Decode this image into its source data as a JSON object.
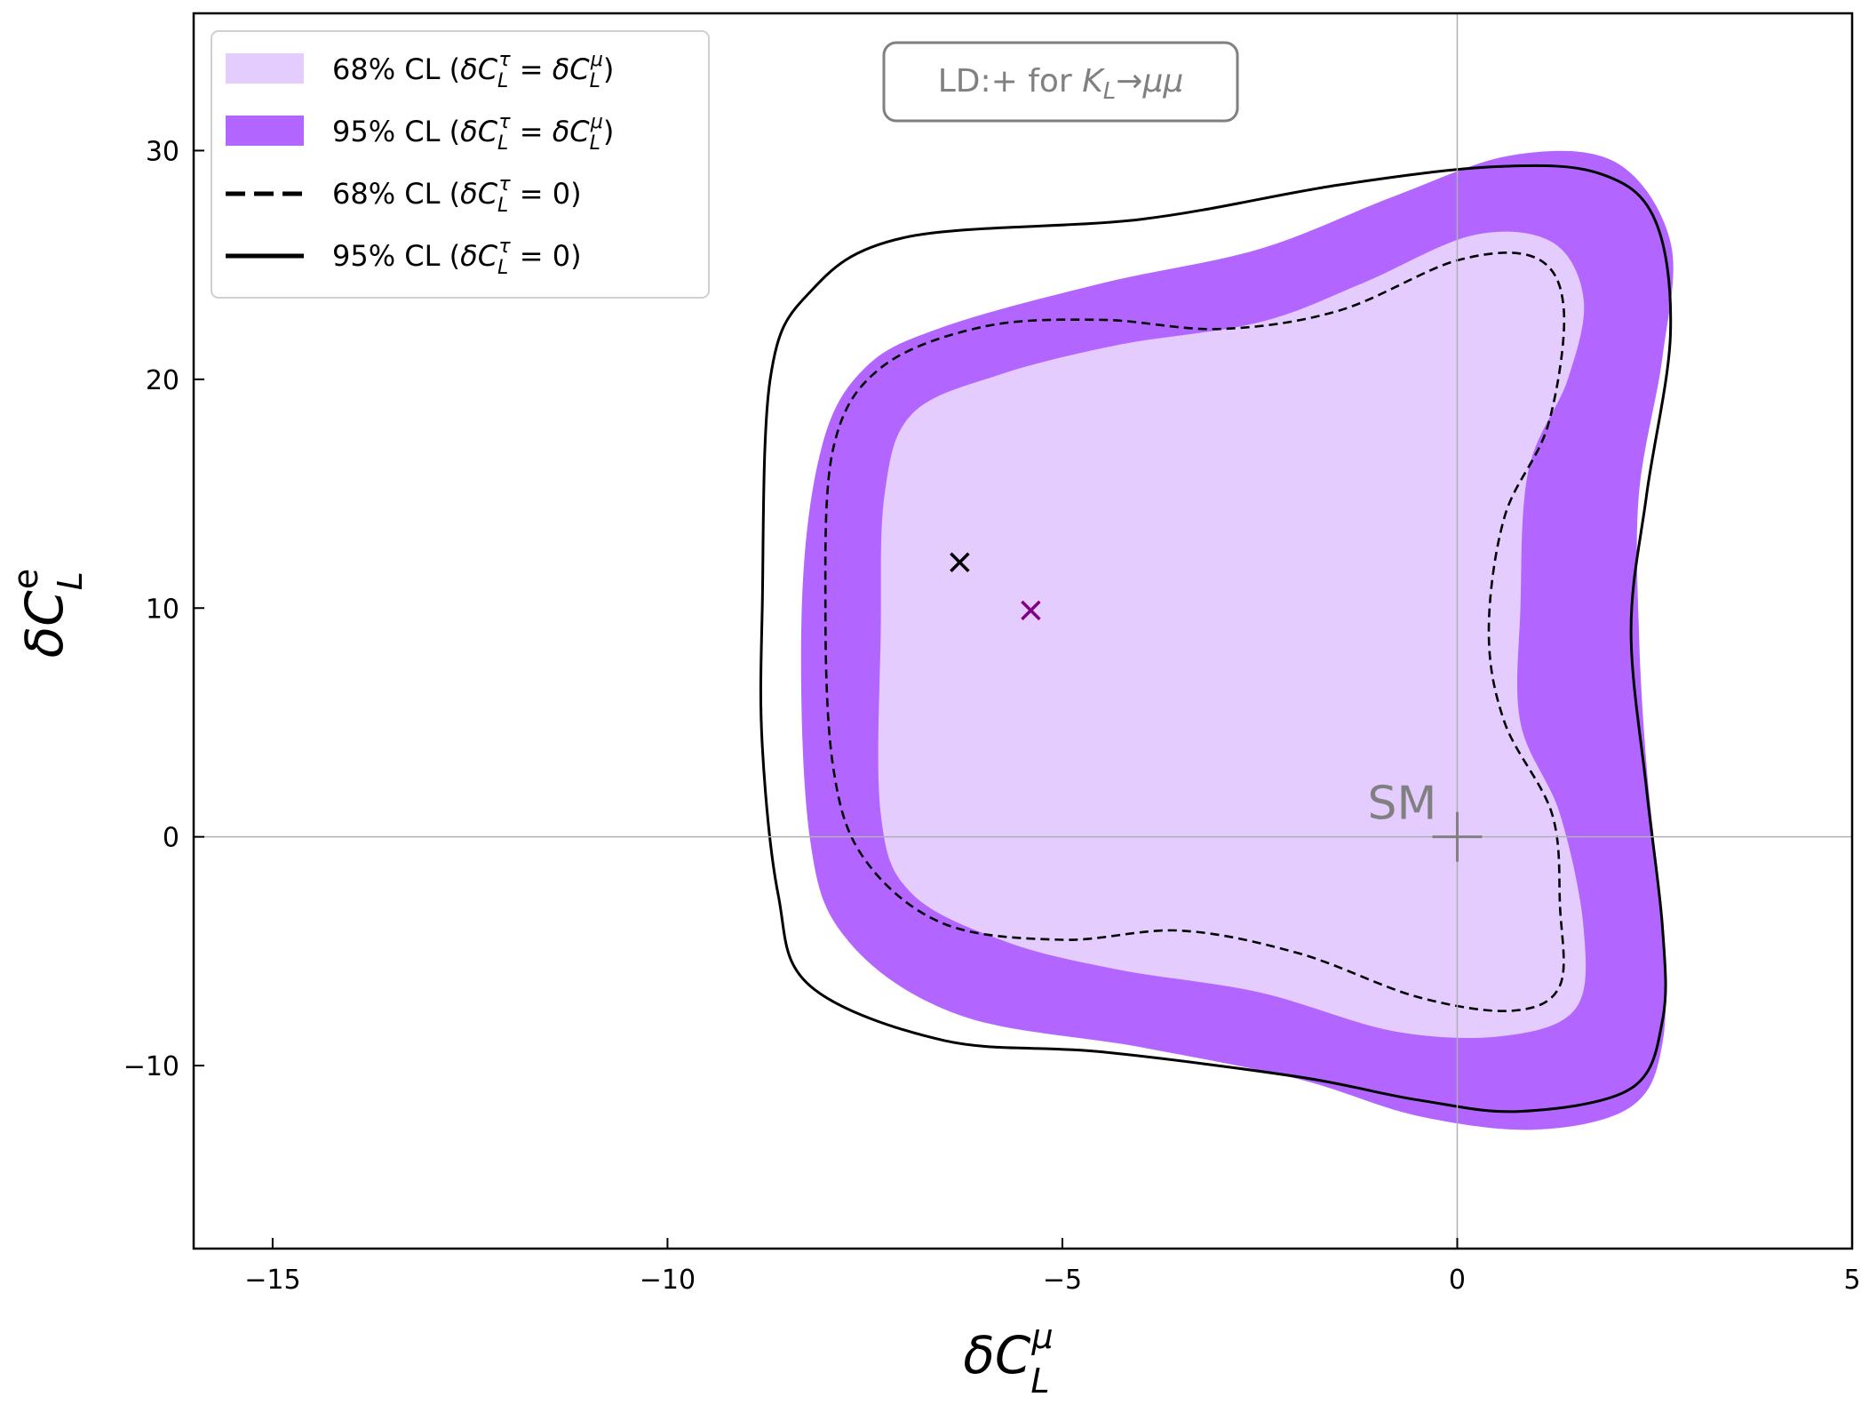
{
  "chart_data": {
    "type": "contour",
    "title": "",
    "xlabel": "δC_L^μ",
    "ylabel": "δC_L^e",
    "xlim": [
      -16,
      5
    ],
    "ylim": [
      -18,
      36
    ],
    "xticks": [
      -15,
      -10,
      -5,
      0,
      5
    ],
    "yticks": [
      -10,
      0,
      10,
      20,
      30
    ],
    "xtick_labels": [
      "−15",
      "−10",
      "−5",
      "0",
      "5"
    ],
    "ytick_labels": [
      "−10",
      "0",
      "10",
      "20",
      "30"
    ],
    "reference_lines": {
      "x": 0,
      "y": 0
    },
    "annotation": {
      "text": "LD:+ for K_L→μμ"
    },
    "sm_point": {
      "label": "SM",
      "x": 0,
      "y": 0,
      "color": "#808080"
    },
    "best_fit_points": [
      {
        "name": "best fit (δC_L^τ = 0)",
        "x": -6.3,
        "y": 12.0,
        "color": "#000000"
      },
      {
        "name": "best fit (δC_L^τ = δC_L^μ)",
        "x": -5.4,
        "y": 9.9,
        "color": "#800080"
      }
    ],
    "series": [
      {
        "name": "68% CL (δC_L^τ = δC_L^μ)",
        "legend_parts": [
          "68% CL (",
          "δC",
          "L",
          "τ",
          " = δC",
          "L",
          "μ",
          ")"
        ],
        "style": "filled",
        "color": "#e5ccff",
        "contour": [
          [
            -7.3,
            9
          ],
          [
            -7.25,
            15
          ],
          [
            -6.9,
            18.5
          ],
          [
            -5.8,
            20.2
          ],
          [
            -4.3,
            21.5
          ],
          [
            -2.5,
            22.5
          ],
          [
            -1.2,
            24.2
          ],
          [
            0.2,
            26.3
          ],
          [
            1.2,
            26
          ],
          [
            1.6,
            23.5
          ],
          [
            1.4,
            20
          ],
          [
            0.9,
            16
          ],
          [
            0.8,
            10
          ],
          [
            0.8,
            5
          ],
          [
            1.3,
            1
          ],
          [
            1.6,
            -4
          ],
          [
            1.5,
            -7.5
          ],
          [
            0.6,
            -8.7
          ],
          [
            -0.8,
            -8.5
          ],
          [
            -2.5,
            -6.8
          ],
          [
            -4.3,
            -5.8
          ],
          [
            -5.7,
            -4.6
          ],
          [
            -6.9,
            -2.5
          ],
          [
            -7.3,
            1
          ],
          [
            -7.3,
            9
          ]
        ]
      },
      {
        "name": "95% CL (δC_L^τ = δC_L^μ)",
        "legend_parts": [
          "95% CL (",
          "δC",
          "L",
          "τ",
          " = δC",
          "L",
          "μ",
          ")"
        ],
        "style": "filled",
        "color": "#b266ff",
        "contour": [
          [
            -8.3,
            10
          ],
          [
            -8.05,
            17
          ],
          [
            -7.5,
            20.5
          ],
          [
            -6.5,
            22.3
          ],
          [
            -4.5,
            24.2
          ],
          [
            -2.5,
            25.7
          ],
          [
            -0.8,
            28
          ],
          [
            0.7,
            29.8
          ],
          [
            2,
            29.5
          ],
          [
            2.7,
            26
          ],
          [
            2.6,
            21
          ],
          [
            2.3,
            15
          ],
          [
            2.3,
            9
          ],
          [
            2.4,
            3
          ],
          [
            2.6,
            -4
          ],
          [
            2.6,
            -9
          ],
          [
            2.2,
            -11.8
          ],
          [
            1,
            -12.8
          ],
          [
            -0.5,
            -12.2
          ],
          [
            -2,
            -10.6
          ],
          [
            -4,
            -9.2
          ],
          [
            -6.3,
            -7.8
          ],
          [
            -7.7,
            -4.6
          ],
          [
            -8.2,
            0
          ],
          [
            -8.3,
            10
          ]
        ]
      },
      {
        "name": "68% CL (δC_L^τ = 0)",
        "legend_parts": [
          "68% CL (",
          "δC",
          "L",
          "τ",
          " = 0)",
          "",
          "",
          ""
        ],
        "style": "dashed",
        "color": "#000000",
        "contour": [
          [
            -8,
            10
          ],
          [
            -7.9,
            17
          ],
          [
            -7.3,
            20.5
          ],
          [
            -6,
            22.3
          ],
          [
            -4.5,
            22.6
          ],
          [
            -3,
            22.2
          ],
          [
            -1.5,
            23
          ],
          [
            0,
            25.2
          ],
          [
            1,
            25.3
          ],
          [
            1.35,
            23
          ],
          [
            1.15,
            18
          ],
          [
            0.6,
            14
          ],
          [
            0.4,
            9
          ],
          [
            0.6,
            5
          ],
          [
            1.2,
            1
          ],
          [
            1.3,
            -3
          ],
          [
            1.3,
            -6.5
          ],
          [
            0.7,
            -7.6
          ],
          [
            -0.5,
            -7
          ],
          [
            -2,
            -5.1
          ],
          [
            -3.5,
            -4.1
          ],
          [
            -5,
            -4.5
          ],
          [
            -6.5,
            -3.8
          ],
          [
            -7.5,
            -1
          ],
          [
            -7.9,
            3
          ],
          [
            -8,
            10
          ]
        ]
      },
      {
        "name": "95% CL (δC_L^τ = 0)",
        "legend_parts": [
          "95% CL (",
          "δC",
          "L",
          "τ",
          " = 0)",
          "",
          "",
          ""
        ],
        "style": "solid",
        "color": "#000000",
        "contour": [
          [
            -8.8,
            10
          ],
          [
            -8.7,
            20
          ],
          [
            -8.2,
            23.8
          ],
          [
            -7,
            26.2
          ],
          [
            -4,
            27
          ],
          [
            -1.5,
            28.5
          ],
          [
            0.5,
            29.3
          ],
          [
            1.8,
            29
          ],
          [
            2.5,
            27
          ],
          [
            2.7,
            22
          ],
          [
            2.4,
            15
          ],
          [
            2.2,
            9
          ],
          [
            2.4,
            2
          ],
          [
            2.6,
            -4
          ],
          [
            2.6,
            -8
          ],
          [
            2.2,
            -11
          ],
          [
            0.8,
            -12
          ],
          [
            -0.5,
            -11.5
          ],
          [
            -2,
            -10.5
          ],
          [
            -4.5,
            -9.4
          ],
          [
            -6.5,
            -8.9
          ],
          [
            -8.2,
            -6.5
          ],
          [
            -8.6,
            -2.5
          ],
          [
            -8.8,
            4
          ],
          [
            -8.8,
            10
          ]
        ]
      }
    ]
  }
}
